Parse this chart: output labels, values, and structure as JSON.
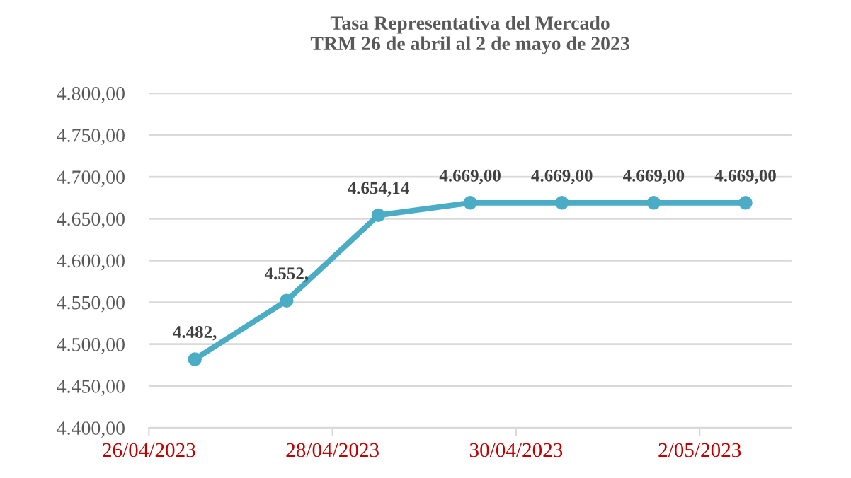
{
  "chart_data": {
    "type": "line",
    "title": "Tasa Representativa del Mercado\nTRM 26 de abril al 2 de mayo de 2023",
    "x": [
      "2023-04-26T12:00",
      "2023-04-27T12:00",
      "2023-04-28T12:00",
      "2023-04-29T12:00",
      "2023-04-30T12:00",
      "2023-05-01T12:00",
      "2023-05-02T12:00"
    ],
    "series": [
      {
        "color": "#4bacc6",
        "values": [
          4482,
          4552,
          4654.14,
          4669.0,
          4669.0,
          4669.0,
          4669.0
        ],
        "value_labels": [
          "4.482,",
          "4.552,",
          "4.654,14",
          "4.669,00",
          "4.669,00",
          "4.669,00",
          "4.669,00"
        ]
      }
    ],
    "xlim": [
      "2023-04-26",
      "2023-05-03"
    ],
    "xticks": [
      {
        "value": "2023-04-26",
        "label": "26/04/2023"
      },
      {
        "value": "2023-04-28",
        "label": "28/04/2023"
      },
      {
        "value": "2023-04-30",
        "label": "30/04/2023"
      },
      {
        "value": "2023-05-02",
        "label": "2/05/2023"
      }
    ],
    "ylim": [
      4400,
      4800
    ],
    "yticks": [
      {
        "value": 4400,
        "label": "4.400,00"
      },
      {
        "value": 4450,
        "label": "4.450,00"
      },
      {
        "value": 4500,
        "label": "4.500,00"
      },
      {
        "value": 4550,
        "label": "4.550,00"
      },
      {
        "value": 4600,
        "label": "4.600,00"
      },
      {
        "value": 4650,
        "label": "4.650,00"
      },
      {
        "value": 4700,
        "label": "4.700,00"
      },
      {
        "value": 4750,
        "label": "4.750,00"
      },
      {
        "value": 4800,
        "label": "4.800,00"
      }
    ],
    "grid": "y",
    "marker": "circle",
    "line_style": "solid",
    "legend": false
  }
}
